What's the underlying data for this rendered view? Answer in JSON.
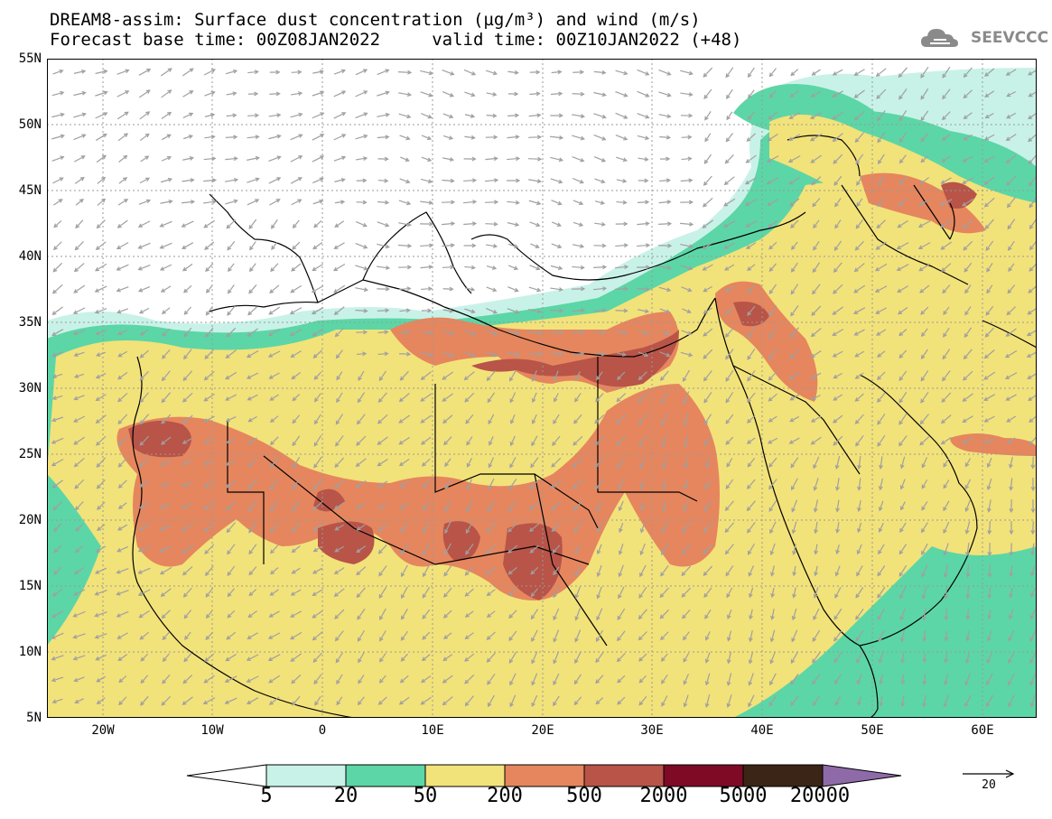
{
  "title_line1": "DREAM8-assim: Surface dust concentration (µg/m³) and wind (m/s)",
  "title_line2": "Forecast base time: 00Z08JAN2022     valid time: 00Z10JAN2022 (+48)",
  "logo_text": "SEEVCCC",
  "logo_icon": "cloud-logo-icon",
  "lat_labels": [
    "55N",
    "50N",
    "45N",
    "40N",
    "35N",
    "30N",
    "25N",
    "20N",
    "15N",
    "10N",
    "5N"
  ],
  "lon_labels": [
    "20W",
    "10W",
    "0",
    "10E",
    "20E",
    "30E",
    "40E",
    "50E",
    "60E"
  ],
  "colorbar": {
    "levels": [
      "5",
      "20",
      "50",
      "200",
      "500",
      "2000",
      "5000",
      "20000"
    ],
    "colors": [
      "#c8f2e8",
      "#5cd6a6",
      "#f2e27a",
      "#e5865e",
      "#b85448",
      "#7e0a26",
      "#3b2516",
      "#8f6aa8"
    ]
  },
  "wind_ref_label": "20",
  "colors": {
    "coast": "#000000",
    "arrow": "#a0a0a0",
    "grid": "#999999"
  },
  "map_data": {
    "lon_range": [
      -25,
      65
    ],
    "lat_range": [
      5,
      55
    ]
  }
}
